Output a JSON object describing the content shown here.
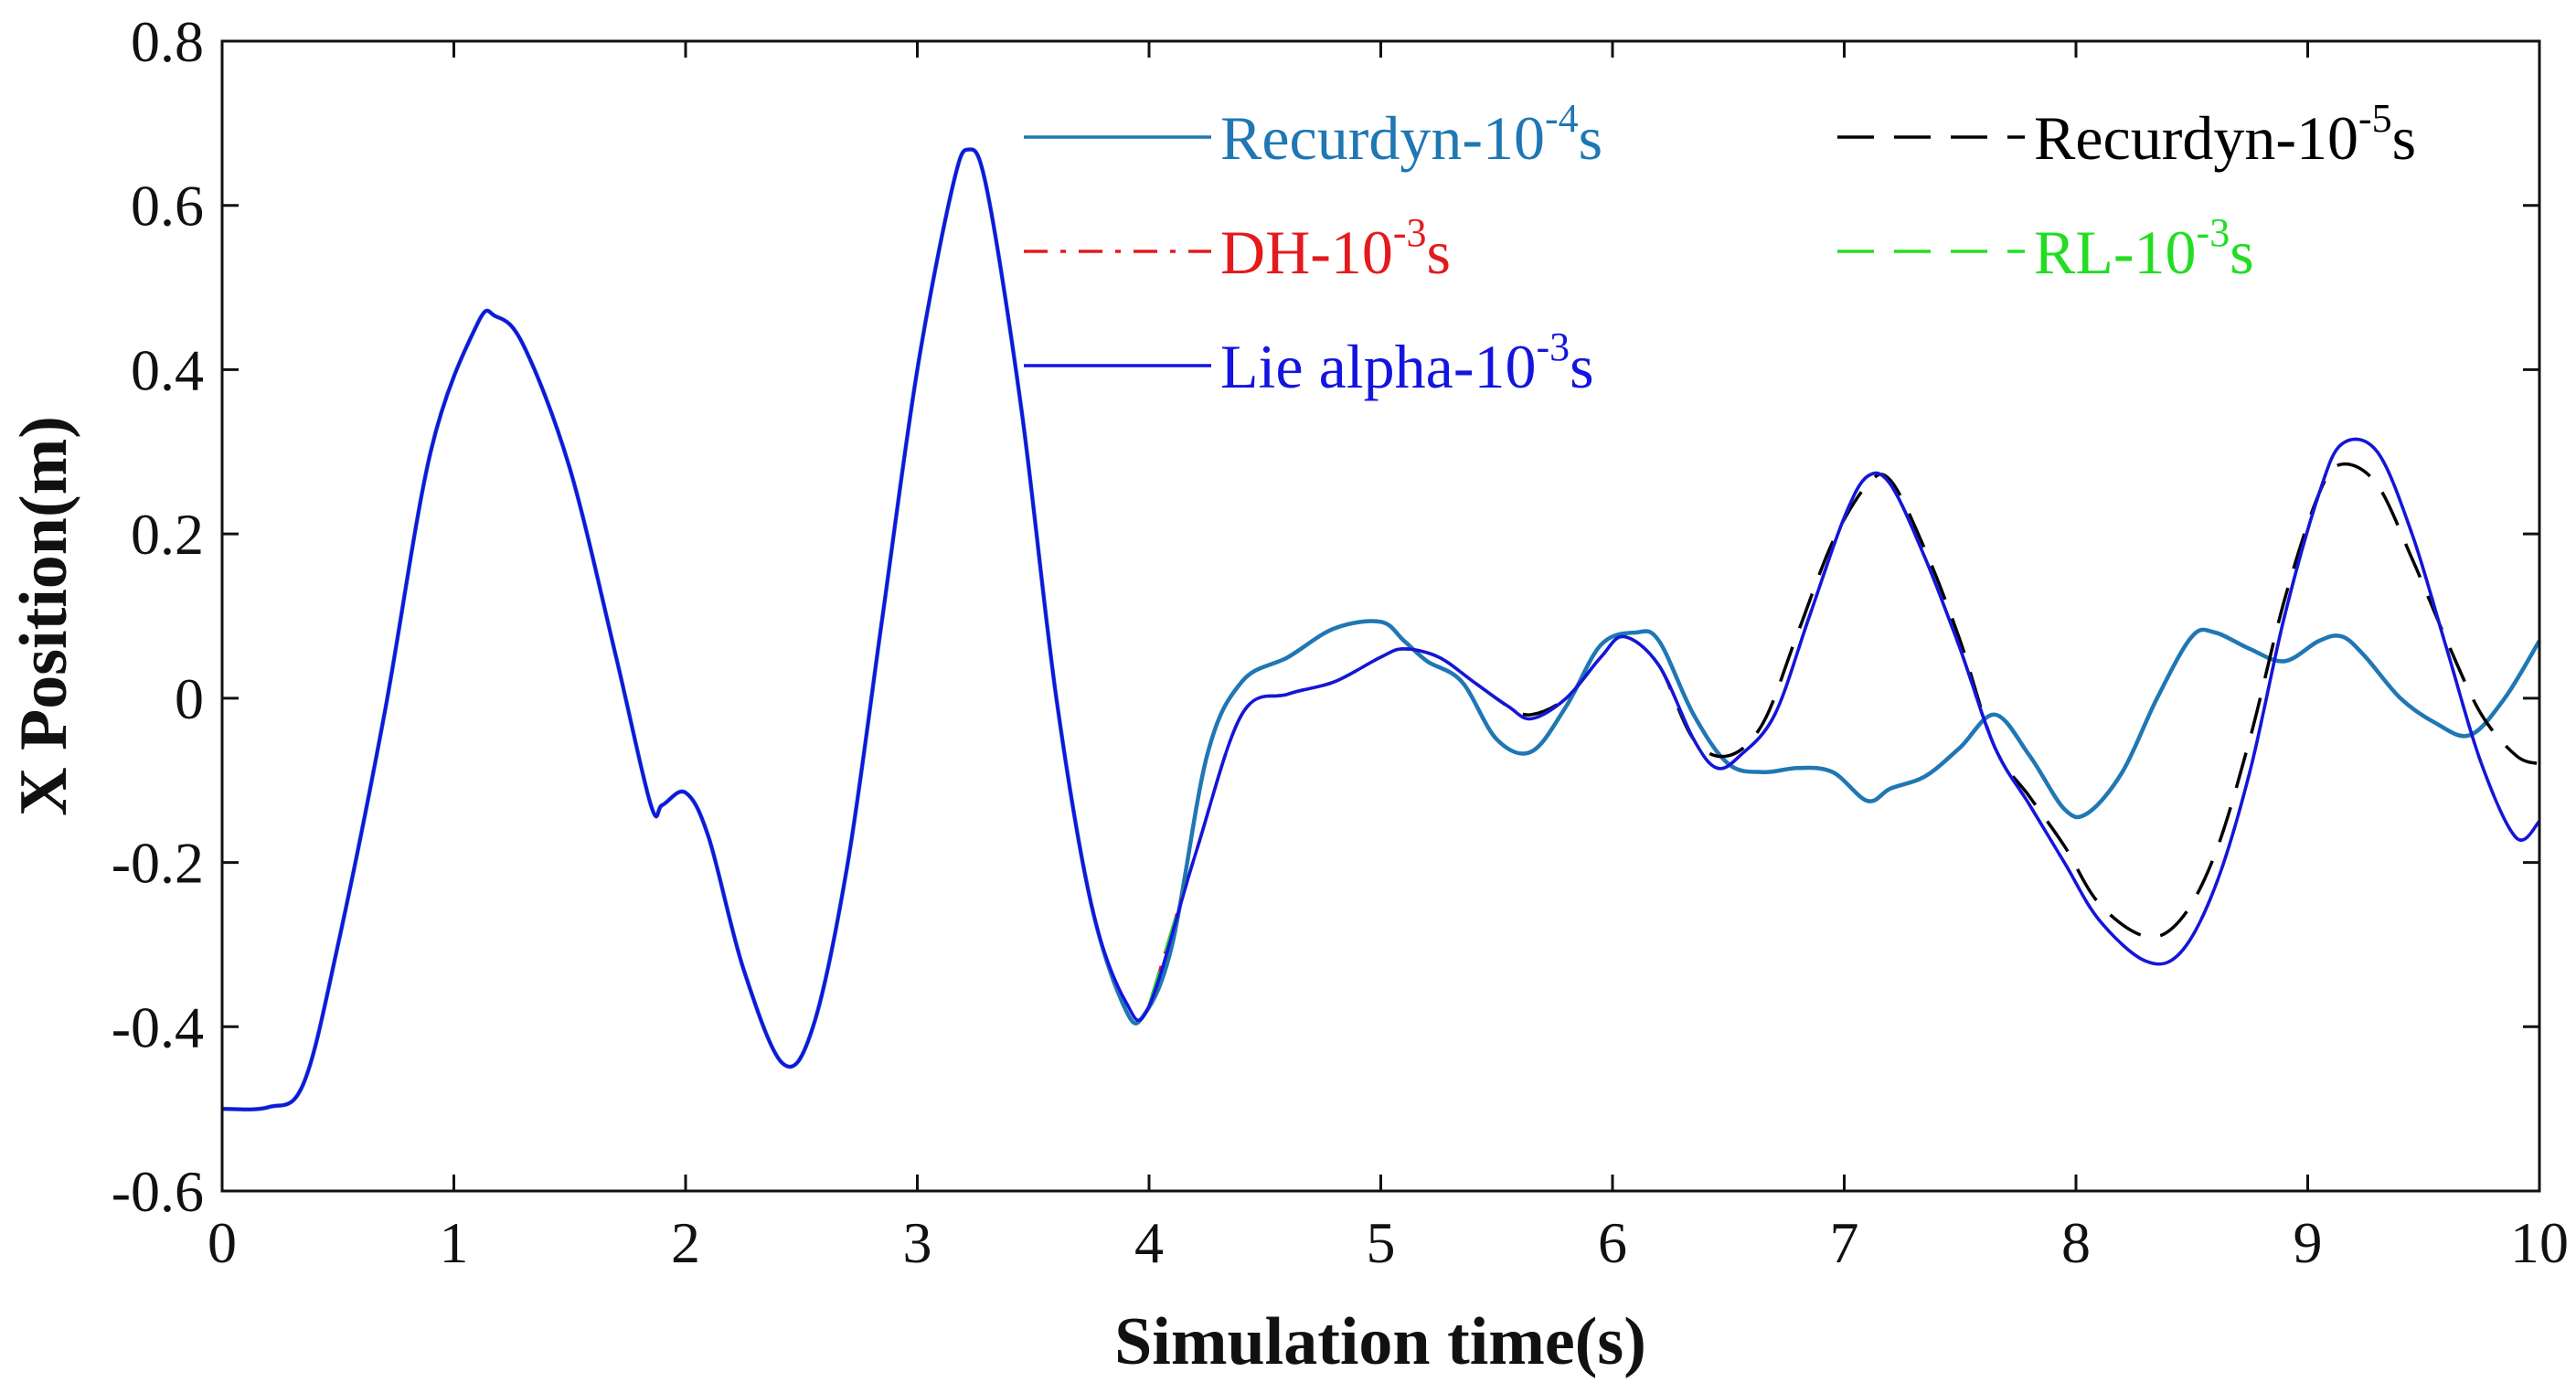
{
  "chart_data": {
    "type": "line",
    "title": "",
    "xlabel": "Simulation time(s)",
    "ylabel": "X Position(m)",
    "xlim": [
      0,
      10
    ],
    "ylim": [
      -0.6,
      0.8
    ],
    "xticks": [
      "0",
      "1",
      "2",
      "3",
      "4",
      "5",
      "6",
      "7",
      "8",
      "9",
      "10"
    ],
    "yticks": [
      "-0.6",
      "-0.4",
      "-0.2",
      "0",
      "0.2",
      "0.4",
      "0.6",
      "0.8"
    ],
    "grid": false,
    "legend_position": "top",
    "series": [
      {
        "name": "Recurdyn-10-4s",
        "label_base": "Recurdyn-10",
        "label_exp": "-4",
        "label_unit": "s",
        "color": "#1f77b4",
        "style": "solid",
        "x": [
          0,
          0.2,
          0.35,
          0.5,
          0.7,
          0.9,
          1.1,
          1.18,
          1.3,
          1.5,
          1.7,
          1.85,
          1.9,
          2.0,
          2.1,
          2.25,
          2.42,
          2.55,
          2.7,
          2.85,
          3.0,
          3.15,
          3.22,
          3.3,
          3.45,
          3.6,
          3.75,
          3.9,
          3.98,
          4.1,
          4.25,
          4.4,
          4.6,
          4.8,
          5.0,
          5.1,
          5.2,
          5.35,
          5.5,
          5.65,
          5.8,
          5.95,
          6.1,
          6.2,
          6.35,
          6.5,
          6.65,
          6.8,
          6.95,
          7.1,
          7.2,
          7.35,
          7.5,
          7.65,
          7.8,
          7.95,
          8.05,
          8.2,
          8.35,
          8.5,
          8.6,
          8.75,
          8.9,
          9.05,
          9.15,
          9.25,
          9.4,
          9.55,
          9.7,
          9.85,
          10.0
        ],
        "y": [
          -0.5,
          -0.498,
          -0.47,
          -0.3,
          -0.02,
          0.3,
          0.455,
          0.465,
          0.43,
          0.28,
          0.05,
          -0.13,
          -0.13,
          -0.115,
          -0.17,
          -0.33,
          -0.445,
          -0.4,
          -0.2,
          0.1,
          0.4,
          0.62,
          0.668,
          0.62,
          0.35,
          0.0,
          -0.25,
          -0.38,
          -0.385,
          -0.3,
          -0.07,
          0.02,
          0.05,
          0.085,
          0.093,
          0.07,
          0.045,
          0.02,
          -0.05,
          -0.065,
          -0.01,
          0.065,
          0.08,
          0.07,
          -0.02,
          -0.08,
          -0.09,
          -0.085,
          -0.09,
          -0.125,
          -0.11,
          -0.095,
          -0.06,
          -0.02,
          -0.07,
          -0.135,
          -0.14,
          -0.09,
          0.0,
          0.075,
          0.08,
          0.06,
          0.045,
          0.07,
          0.075,
          0.05,
          0.0,
          -0.03,
          -0.045,
          0.0,
          0.07
        ]
      },
      {
        "name": "Recurdyn-10-5s",
        "label_base": "Recurdyn-10",
        "label_exp": "-5",
        "label_unit": "s",
        "color": "#000000",
        "style": "dashed",
        "x": [
          4.0,
          4.2,
          4.4,
          4.6,
          4.8,
          5.0,
          5.1,
          5.25,
          5.4,
          5.55,
          5.65,
          5.8,
          5.95,
          6.05,
          6.2,
          6.35,
          6.5,
          6.65,
          6.8,
          6.95,
          7.1,
          7.2,
          7.35,
          7.5,
          7.65,
          7.8,
          7.95,
          8.1,
          8.3,
          8.45,
          8.6,
          8.75,
          8.9,
          9.05,
          9.15,
          9.3,
          9.45,
          9.6,
          9.75,
          9.9,
          10.0
        ],
        "y": [
          -0.375,
          -0.19,
          -0.02,
          0.005,
          0.02,
          0.05,
          0.06,
          0.05,
          0.02,
          -0.01,
          -0.02,
          0.0,
          0.05,
          0.075,
          0.04,
          -0.05,
          -0.07,
          -0.03,
          0.08,
          0.19,
          0.26,
          0.265,
          0.18,
          0.07,
          -0.06,
          -0.12,
          -0.18,
          -0.25,
          -0.29,
          -0.27,
          -0.19,
          -0.05,
          0.12,
          0.25,
          0.285,
          0.26,
          0.17,
          0.07,
          -0.02,
          -0.07,
          -0.08
        ]
      },
      {
        "name": "DH-10-3s",
        "label_base": "DH-10",
        "label_exp": "-3",
        "label_unit": "s",
        "color": "#e41a1c",
        "style": "dashdot",
        "x": [
          4.0,
          4.2,
          4.4,
          4.6,
          4.8,
          5.0,
          5.1,
          5.25,
          5.4,
          5.55,
          5.65,
          5.8,
          5.95,
          6.05,
          6.2,
          6.35,
          6.45,
          6.55,
          6.7,
          6.85,
          7.0,
          7.1,
          7.2,
          7.35,
          7.5,
          7.65,
          7.8,
          7.95,
          8.1,
          8.3,
          8.45,
          8.6,
          8.75,
          8.9,
          9.05,
          9.15,
          9.3,
          9.45,
          9.6,
          9.75,
          9.9,
          10.0
        ],
        "y": [
          -0.375,
          -0.19,
          -0.02,
          0.005,
          0.02,
          0.05,
          0.06,
          0.05,
          0.02,
          -0.01,
          -0.025,
          0.0,
          0.05,
          0.075,
          0.04,
          -0.05,
          -0.085,
          -0.07,
          -0.02,
          0.1,
          0.22,
          0.27,
          0.26,
          0.17,
          0.06,
          -0.06,
          -0.13,
          -0.2,
          -0.27,
          -0.32,
          -0.31,
          -0.23,
          -0.09,
          0.1,
          0.25,
          0.31,
          0.3,
          0.2,
          0.06,
          -0.08,
          -0.17,
          -0.15
        ]
      },
      {
        "name": "RL-10-3s",
        "label_base": "RL-10",
        "label_exp": "-3",
        "label_unit": "s",
        "color": "#22dd22",
        "style": "dashed",
        "x": [
          4.0,
          4.2,
          4.4,
          4.6,
          4.8,
          5.0,
          5.1,
          5.25,
          5.4,
          5.55,
          5.65,
          5.8,
          5.95,
          6.05,
          6.2,
          6.35,
          6.45,
          6.55,
          6.7,
          6.85,
          7.0,
          7.1,
          7.2,
          7.35,
          7.5,
          7.65,
          7.8,
          7.95,
          8.1,
          8.3,
          8.45,
          8.6,
          8.75,
          8.9,
          9.05,
          9.15,
          9.3,
          9.45,
          9.6,
          9.75,
          9.9,
          10.0
        ],
        "y": [
          -0.375,
          -0.19,
          -0.02,
          0.005,
          0.02,
          0.05,
          0.06,
          0.05,
          0.02,
          -0.01,
          -0.025,
          0.0,
          0.05,
          0.075,
          0.04,
          -0.05,
          -0.085,
          -0.07,
          -0.02,
          0.1,
          0.22,
          0.27,
          0.26,
          0.17,
          0.06,
          -0.06,
          -0.13,
          -0.2,
          -0.27,
          -0.32,
          -0.31,
          -0.23,
          -0.09,
          0.1,
          0.25,
          0.31,
          0.3,
          0.2,
          0.06,
          -0.08,
          -0.17,
          -0.15
        ]
      },
      {
        "name": "Lie alpha-10-3s",
        "label_base": "Lie alpha-10",
        "label_exp": "-3",
        "label_unit": "s",
        "color": "#1414e0",
        "style": "solid",
        "x": [
          0,
          0.2,
          0.35,
          0.5,
          0.7,
          0.9,
          1.1,
          1.18,
          1.3,
          1.5,
          1.7,
          1.85,
          1.9,
          2.0,
          2.1,
          2.25,
          2.42,
          2.55,
          2.7,
          2.85,
          3.0,
          3.15,
          3.22,
          3.3,
          3.45,
          3.6,
          3.75,
          3.9,
          4.0,
          4.2,
          4.4,
          4.6,
          4.8,
          5.0,
          5.1,
          5.25,
          5.4,
          5.55,
          5.65,
          5.8,
          5.95,
          6.05,
          6.2,
          6.35,
          6.45,
          6.55,
          6.7,
          6.85,
          7.0,
          7.1,
          7.2,
          7.35,
          7.5,
          7.65,
          7.8,
          7.95,
          8.1,
          8.3,
          8.45,
          8.6,
          8.75,
          8.9,
          9.05,
          9.15,
          9.3,
          9.45,
          9.6,
          9.75,
          9.9,
          10.0
        ],
        "y": [
          -0.5,
          -0.498,
          -0.47,
          -0.3,
          -0.02,
          0.3,
          0.455,
          0.465,
          0.43,
          0.28,
          0.05,
          -0.13,
          -0.13,
          -0.115,
          -0.17,
          -0.33,
          -0.445,
          -0.4,
          -0.2,
          0.1,
          0.4,
          0.62,
          0.668,
          0.62,
          0.35,
          0.0,
          -0.25,
          -0.37,
          -0.375,
          -0.19,
          -0.02,
          0.005,
          0.02,
          0.05,
          0.06,
          0.05,
          0.02,
          -0.01,
          -0.025,
          0.0,
          0.05,
          0.075,
          0.04,
          -0.05,
          -0.085,
          -0.07,
          -0.02,
          0.1,
          0.22,
          0.27,
          0.26,
          0.17,
          0.06,
          -0.06,
          -0.13,
          -0.2,
          -0.27,
          -0.32,
          -0.31,
          -0.23,
          -0.09,
          0.1,
          0.25,
          0.31,
          0.3,
          0.2,
          0.06,
          -0.08,
          -0.17,
          -0.15
        ]
      }
    ]
  }
}
